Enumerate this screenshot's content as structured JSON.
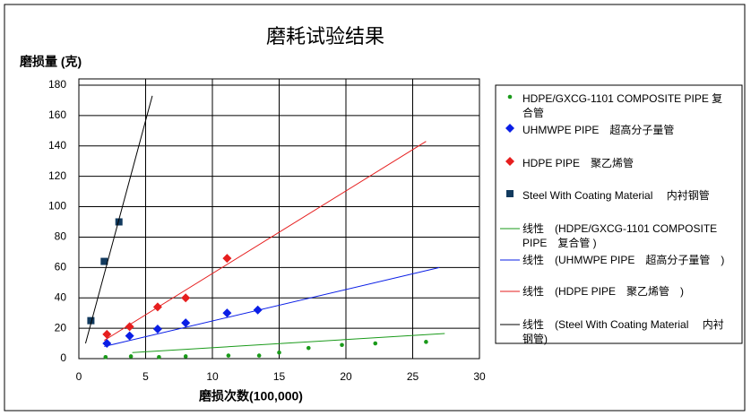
{
  "chart_data": {
    "type": "scatter",
    "title": "磨耗试验结果",
    "y_label": "磨损量 (克)",
    "x_label": "磨损次数(100,000)",
    "xlim": [
      0,
      30
    ],
    "xticks": [
      0,
      5,
      10,
      15,
      20,
      25,
      30
    ],
    "ylim": [
      0,
      180
    ],
    "yticks": [
      0,
      20,
      40,
      60,
      80,
      100,
      120,
      140,
      160,
      180
    ],
    "grid": true,
    "legend": "right",
    "series": [
      {
        "name": "HDPE/GXCG-1101 COMPOSITE PIPE 复合管",
        "type": "scatter",
        "marker": "circle",
        "color": "#1a9a1a",
        "x": [
          2,
          3.9,
          6,
          8,
          11.2,
          13.5,
          15,
          17.2,
          19.7,
          22.2,
          26
        ],
        "values": [
          1,
          1.5,
          1,
          1.5,
          2,
          2,
          4,
          7,
          9,
          10,
          11
        ]
      },
      {
        "name": "UHMWPE PIPE　超高分子量管",
        "type": "scatter",
        "marker": "diamond",
        "color": "#0a1ee6",
        "x": [
          2.1,
          3.8,
          5.9,
          8,
          11.1,
          13.4
        ],
        "values": [
          10,
          15,
          19.5,
          23.5,
          30,
          32
        ]
      },
      {
        "name": "HDPE PIPE　聚乙烯管",
        "type": "scatter",
        "marker": "diamond",
        "color": "#e61e1e",
        "x": [
          2.1,
          3.8,
          5.9,
          8,
          11.1
        ],
        "values": [
          16,
          21,
          34,
          40,
          66
        ]
      },
      {
        "name": "Steel With Coating Material　 内衬钢管",
        "type": "scatter",
        "marker": "square",
        "color": "#123a5e",
        "x": [
          0.9,
          1.9,
          3
        ],
        "values": [
          25,
          64,
          90
        ]
      },
      {
        "name": "线性　(HDPE/GXCG-1101 COMPOSITE PIPE　复合管 )",
        "type": "line",
        "color": "#1a9a1a",
        "x": [
          4,
          27.4
        ],
        "values": [
          4,
          16.5
        ]
      },
      {
        "name": "线性　(UHMWPE PIPE　超高分子量管　)",
        "type": "line",
        "color": "#0a1ee6",
        "x": [
          1.9,
          27
        ],
        "values": [
          8,
          60
        ]
      },
      {
        "name": "线性　(HDPE PIPE　聚乙烯管　)",
        "type": "line",
        "color": "#e61e1e",
        "x": [
          1.9,
          26
        ],
        "values": [
          12,
          143
        ]
      },
      {
        "name": "线性　(Steel With Coating Material　 内衬钢管)",
        "type": "line",
        "color": "#000000",
        "x": [
          0.5,
          5.5
        ],
        "values": [
          10,
          173
        ]
      }
    ]
  }
}
